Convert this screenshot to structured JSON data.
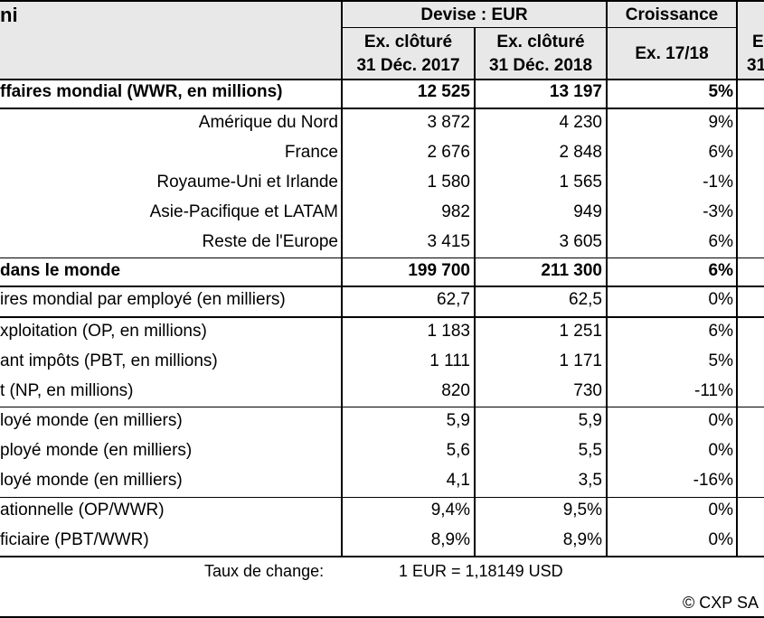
{
  "header": {
    "col0": "ni",
    "devise": "Devise : EUR",
    "croissance": "Croissance",
    "ex1_line1": "Ex. clôturé",
    "ex1_line2": "31 Déc. 2017",
    "ex2_line1": "Ex. clôturé",
    "ex2_line2": "31 Déc. 2018",
    "growth_col": "Ex. 17/18",
    "cut1": "E",
    "cut2": "31"
  },
  "rows": [
    {
      "label": "ffaires mondial (WWR, en millions)",
      "v2017": "12 525",
      "v2018": "13 197",
      "growth": "5%"
    },
    {
      "label": "Amérique du Nord",
      "v2017": "3 872",
      "v2018": "4 230",
      "growth": "9%"
    },
    {
      "label": "France",
      "v2017": "2 676",
      "v2018": "2 848",
      "growth": "6%"
    },
    {
      "label": "Royaume-Uni et Irlande",
      "v2017": "1 580",
      "v2018": "1 565",
      "growth": "-1%"
    },
    {
      "label": "Asie-Pacifique et LATAM",
      "v2017": "982",
      "v2018": "949",
      "growth": "-3%"
    },
    {
      "label": "Reste de l'Europe",
      "v2017": "3 415",
      "v2018": "3 605",
      "growth": "6%"
    },
    {
      "label": "dans le monde",
      "v2017": "199 700",
      "v2018": "211 300",
      "growth": "6%"
    },
    {
      "label": "ires mondial par employé (en milliers)",
      "v2017": "62,7",
      "v2018": "62,5",
      "growth": "0%"
    },
    {
      "label": "xploitation (OP, en millions)",
      "v2017": "1 183",
      "v2018": "1 251",
      "growth": "6%"
    },
    {
      "label": "ant impôts (PBT, en millions)",
      "v2017": "1 111",
      "v2018": "1 171",
      "growth": "5%"
    },
    {
      "label": "t (NP, en millions)",
      "v2017": "820",
      "v2018": "730",
      "growth": "-11%"
    },
    {
      "label": "loyé monde (en milliers)",
      "v2017": "5,9",
      "v2018": "5,9",
      "growth": "0%"
    },
    {
      "label": "ployé monde (en milliers)",
      "v2017": "5,6",
      "v2018": "5,5",
      "growth": "0%"
    },
    {
      "label": "loyé monde (en milliers)",
      "v2017": "4,1",
      "v2018": "3,5",
      "growth": "-16%"
    },
    {
      "label": "ationnelle (OP/WWR)",
      "v2017": "9,4%",
      "v2018": "9,5%",
      "growth": "0%"
    },
    {
      "label": "ficiaire (PBT/WWR)",
      "v2017": "8,9%",
      "v2018": "8,9%",
      "growth": "0%"
    }
  ],
  "footer": {
    "fx_label": "Taux de change:",
    "fx_value": "1 EUR =  1,18149 USD",
    "copyright": "© CXP SA"
  }
}
